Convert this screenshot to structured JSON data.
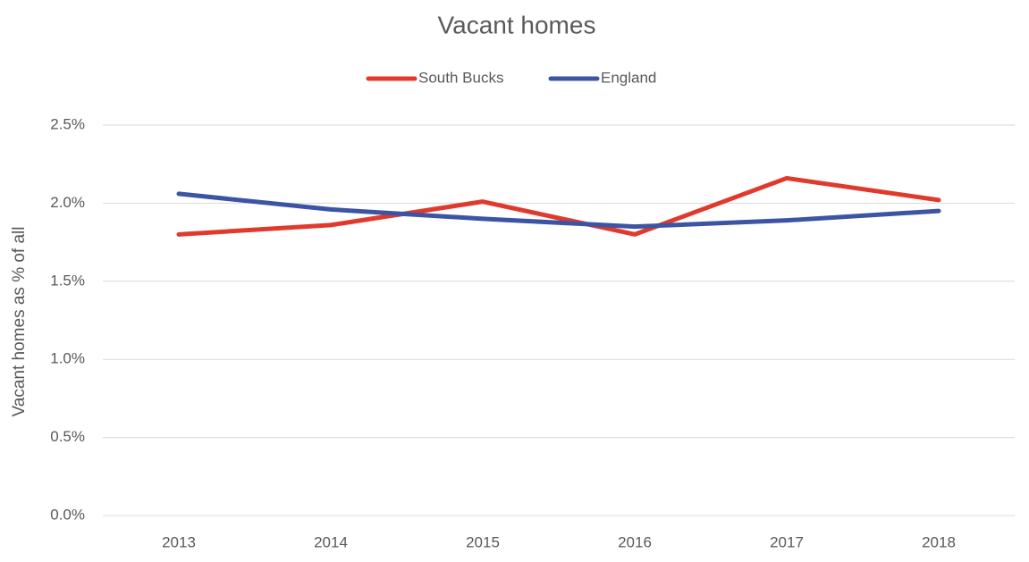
{
  "chart_data": {
    "type": "line",
    "title": "Vacant homes",
    "y_label": "Vacant homes as % of all",
    "categories": [
      "2013",
      "2014",
      "2015",
      "2016",
      "2017",
      "2018"
    ],
    "series": [
      {
        "name": "South Bucks",
        "color": "#e03a2d",
        "values": [
          1.8,
          1.86,
          2.01,
          1.8,
          2.16,
          2.02
        ]
      },
      {
        "name": "England",
        "color": "#3c54a4",
        "values": [
          2.06,
          1.96,
          1.9,
          1.85,
          1.89,
          1.95
        ]
      }
    ],
    "ylim": [
      0,
      2.5
    ],
    "yticks": [
      {
        "value": 0,
        "label": "0.0%"
      },
      {
        "value": 0.5,
        "label": "0.5%"
      },
      {
        "value": 1,
        "label": "1.0%"
      },
      {
        "value": 1.5,
        "label": "1.5%"
      },
      {
        "value": 2,
        "label": "2.0%"
      },
      {
        "value": 2.5,
        "label": "2.5%"
      }
    ],
    "grid": true,
    "legend": "top"
  }
}
